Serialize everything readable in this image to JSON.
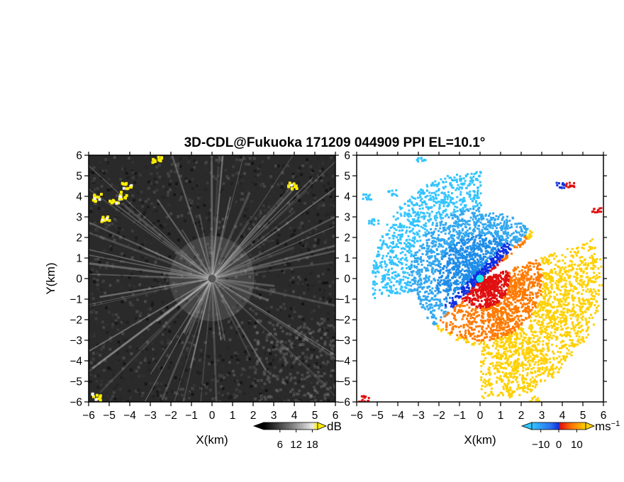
{
  "chart_data": [
    {
      "type": "heatmap",
      "title": "3D-CDL@Fukuoka 171209 044909 PPI EL=10.1°",
      "xlabel": "X(km)",
      "ylabel": "Y(km)",
      "xlim": [
        -6,
        6
      ],
      "ylim": [
        -6,
        6
      ],
      "x_ticks": [
        "−6",
        "−5",
        "−4",
        "−3",
        "−2",
        "−1",
        "0",
        "1",
        "2",
        "3",
        "4",
        "5",
        "6"
      ],
      "y_ticks": [
        "6",
        "5",
        "4",
        "3",
        "2",
        "1",
        "0",
        "−1",
        "−2",
        "−3",
        "−4",
        "−5",
        "−6"
      ],
      "colorbar": {
        "unit": "dB",
        "ticks": [
          "6",
          "12",
          "18"
        ],
        "range": [
          0,
          20
        ],
        "colormap": "gray-to-yellow"
      },
      "bright_echo_clusters": [
        {
          "x": -5.7,
          "y": 4.0
        },
        {
          "x": -4.8,
          "y": 3.9
        },
        {
          "x": -4.3,
          "y": 4.1
        },
        {
          "x": -4.2,
          "y": 4.6
        },
        {
          "x": -5.3,
          "y": 2.9
        },
        {
          "x": -2.7,
          "y": 5.8
        },
        {
          "x": 3.9,
          "y": 4.6
        },
        {
          "x": -5.7,
          "y": -5.7
        }
      ]
    },
    {
      "type": "heatmap",
      "xlabel": "X(km)",
      "xlim": [
        -6,
        6
      ],
      "ylim": [
        -6,
        6
      ],
      "x_ticks": [
        "−6",
        "−5",
        "−4",
        "−3",
        "−2",
        "−1",
        "0",
        "1",
        "2",
        "3",
        "4",
        "5",
        "6"
      ],
      "y_ticks": [
        "6",
        "5",
        "4",
        "3",
        "2",
        "1",
        "0",
        "−1",
        "−2",
        "−3",
        "−4",
        "−5",
        "−6"
      ],
      "colorbar": {
        "unit": "ms",
        "unit_exponent": "−1",
        "ticks": [
          "−10",
          "0",
          "10"
        ],
        "range": [
          -15,
          15
        ],
        "colormap": "cyan-blue-red-orange-yellow"
      },
      "velocity_pattern": "approaching (negative) toward north-west, receding (positive) toward south-east"
    }
  ],
  "colors": {
    "gray_background": "#2a2a2a",
    "echo_yellow": "#ffee00",
    "vel_neg_light": "#33c4ff",
    "vel_neg_dark": "#1030e0",
    "vel_pos_dark": "#e01010",
    "vel_pos_mid": "#ff7a00",
    "vel_pos_light": "#ffd000",
    "radar_center_gray": "#555555",
    "radar_center_cyan": "#20e8e8"
  }
}
